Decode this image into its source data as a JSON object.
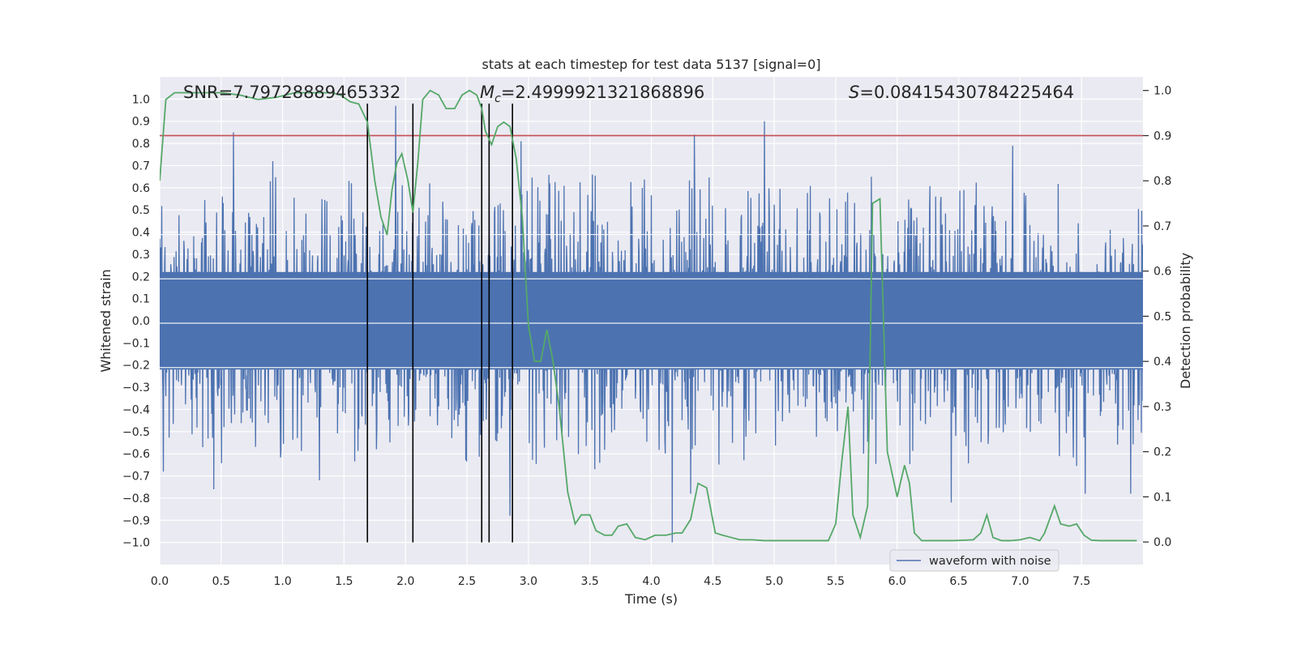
{
  "chart_data": {
    "type": "line",
    "title": "stats at each timestep for test data 5137 [signal=0]",
    "xlabel": "Time (s)",
    "ylabel_left": "Whitened strain",
    "ylabel_right": "Detection probability",
    "xlim": [
      0.0,
      8.0
    ],
    "ylim_left": [
      -1.1,
      1.1
    ],
    "ylim_right": [
      -0.05,
      1.03
    ],
    "x_ticks": [
      0.0,
      0.5,
      1.0,
      1.5,
      2.0,
      2.5,
      3.0,
      3.5,
      4.0,
      4.5,
      5.0,
      5.5,
      6.0,
      6.5,
      7.0,
      7.5
    ],
    "y_ticks_left": [
      -1.0,
      -0.9,
      -0.8,
      -0.7,
      -0.6,
      -0.5,
      -0.4,
      -0.3,
      -0.2,
      -0.1,
      0.0,
      0.1,
      0.2,
      0.3,
      0.4,
      0.5,
      0.6,
      0.7,
      0.8,
      0.9,
      1.0
    ],
    "y_ticks_right": [
      0.0,
      0.1,
      0.2,
      0.3,
      0.4,
      0.5,
      0.6,
      0.7,
      0.8,
      0.9,
      1.0
    ],
    "grid": true,
    "annotations": {
      "snr": "SNR=7.79728889465332",
      "mc_symbol": "M",
      "mc_subscript": "c",
      "mc_value": "=2.4999921321868896",
      "s_symbol": "S",
      "s_value": "=0.08415430784225464"
    },
    "legend": {
      "label": "waveform with noise",
      "placement": "lower-right"
    },
    "threshold_line": {
      "y_right": 0.9,
      "color": "#c44e52"
    },
    "vertical_markers": [
      1.69,
      2.06,
      2.62,
      2.68,
      2.87
    ],
    "waveform": {
      "name": "waveform with noise",
      "color": "#4c72b0",
      "duration_s": 8.0,
      "approx_amplitude": 0.4,
      "peaks": [
        {
          "x": 0.6,
          "v": 0.85
        },
        {
          "x": 0.92,
          "v": 0.72
        },
        {
          "x": 1.92,
          "v": 0.97
        },
        {
          "x": 2.85,
          "v": -0.88
        },
        {
          "x": 2.94,
          "v": 0.81
        },
        {
          "x": 4.17,
          "v": -1.0
        },
        {
          "x": 4.32,
          "v": -0.78
        },
        {
          "x": 4.35,
          "v": 0.84
        },
        {
          "x": 4.92,
          "v": 0.9
        },
        {
          "x": 6.44,
          "v": -0.82
        },
        {
          "x": 6.94,
          "v": 0.79
        },
        {
          "x": 7.53,
          "v": -0.78
        },
        {
          "x": 7.9,
          "v": -0.78
        },
        {
          "x": 0.03,
          "v": -0.68
        },
        {
          "x": 0.44,
          "v": -0.76
        },
        {
          "x": 1.3,
          "v": -0.72
        }
      ]
    },
    "detection_probability": {
      "name": "detection probability",
      "color": "#55a868",
      "x": [
        0.0,
        0.05,
        0.12,
        0.2,
        0.35,
        0.5,
        0.65,
        0.8,
        0.95,
        1.1,
        1.25,
        1.4,
        1.47,
        1.55,
        1.62,
        1.69,
        1.75,
        1.8,
        1.85,
        1.89,
        1.93,
        1.97,
        2.02,
        2.06,
        2.1,
        2.14,
        2.2,
        2.27,
        2.33,
        2.4,
        2.46,
        2.52,
        2.58,
        2.62,
        2.65,
        2.7,
        2.75,
        2.8,
        2.85,
        2.9,
        2.95,
        3.0,
        3.05,
        3.1,
        3.15,
        3.2,
        3.25,
        3.32,
        3.38,
        3.43,
        3.5,
        3.55,
        3.62,
        3.68,
        3.73,
        3.8,
        3.87,
        3.95,
        4.03,
        4.12,
        4.2,
        4.25,
        4.32,
        4.38,
        4.45,
        4.52,
        4.58,
        4.65,
        4.72,
        4.82,
        4.92,
        5.02,
        5.12,
        5.22,
        5.32,
        5.44,
        5.5,
        5.55,
        5.6,
        5.64,
        5.7,
        5.76,
        5.8,
        5.86,
        5.92,
        6.0,
        6.06,
        6.1,
        6.14,
        6.2,
        6.25,
        6.35,
        6.45,
        6.55,
        6.62,
        6.68,
        6.73,
        6.78,
        6.85,
        6.92,
        7.0,
        7.08,
        7.16,
        7.2,
        7.28,
        7.33,
        7.4,
        7.46,
        7.52,
        7.58,
        7.65,
        7.75,
        7.85,
        7.95
      ],
      "y": [
        0.8,
        0.98,
        0.995,
        0.995,
        0.995,
        0.995,
        0.99,
        0.98,
        0.985,
        0.995,
        0.995,
        0.995,
        0.99,
        0.975,
        0.97,
        0.93,
        0.8,
        0.72,
        0.68,
        0.78,
        0.84,
        0.86,
        0.8,
        0.73,
        0.84,
        0.98,
        1.0,
        0.99,
        0.96,
        0.96,
        0.99,
        1.0,
        0.99,
        0.96,
        0.91,
        0.88,
        0.92,
        0.93,
        0.92,
        0.85,
        0.72,
        0.48,
        0.4,
        0.4,
        0.47,
        0.4,
        0.3,
        0.11,
        0.04,
        0.06,
        0.06,
        0.025,
        0.015,
        0.015,
        0.035,
        0.04,
        0.01,
        0.005,
        0.015,
        0.015,
        0.02,
        0.02,
        0.05,
        0.13,
        0.12,
        0.02,
        0.015,
        0.01,
        0.005,
        0.005,
        0.003,
        0.003,
        0.003,
        0.003,
        0.003,
        0.003,
        0.04,
        0.18,
        0.3,
        0.06,
        0.01,
        0.08,
        0.75,
        0.76,
        0.2,
        0.1,
        0.17,
        0.13,
        0.02,
        0.003,
        0.003,
        0.003,
        0.003,
        0.004,
        0.005,
        0.02,
        0.06,
        0.01,
        0.003,
        0.003,
        0.005,
        0.01,
        0.003,
        0.02,
        0.08,
        0.04,
        0.035,
        0.04,
        0.015,
        0.004,
        0.003,
        0.003,
        0.003,
        0.003
      ]
    }
  }
}
